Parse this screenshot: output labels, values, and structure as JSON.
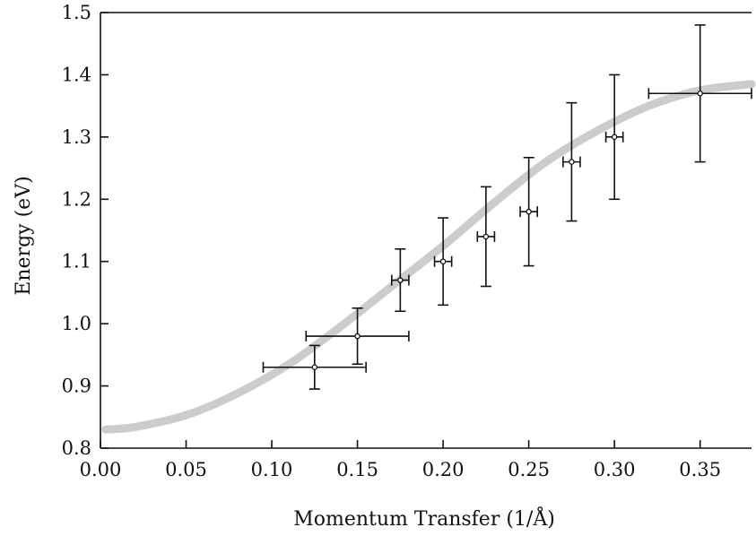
{
  "chart_data": {
    "type": "scatter",
    "title": "",
    "xlabel": "Momentum Transfer (1/Å)",
    "ylabel": "Energy (eV)",
    "xlim": [
      0.0,
      0.38
    ],
    "ylim": [
      0.8,
      1.5
    ],
    "xticks": [
      0.0,
      0.05,
      0.1,
      0.15,
      0.2,
      0.25,
      0.3,
      0.35
    ],
    "xtick_labels": [
      "0.00",
      "0.05",
      "0.10",
      "0.15",
      "0.20",
      "0.25",
      "0.30",
      "0.35"
    ],
    "yticks": [
      0.8,
      0.9,
      1.0,
      1.1,
      1.2,
      1.3,
      1.4,
      1.5
    ],
    "ytick_labels": [
      "0.8",
      "0.9",
      "1.0",
      "1.1",
      "1.2",
      "1.3",
      "1.4",
      "1.5"
    ],
    "grid": false,
    "legend": "none",
    "series": [
      {
        "kind": "points-with-errorbars",
        "color": "#111111",
        "points": [
          {
            "x": 0.125,
            "y": 0.93,
            "xerr": 0.03,
            "yerr_low": 0.035,
            "yerr_high": 0.035
          },
          {
            "x": 0.15,
            "y": 0.98,
            "xerr": 0.03,
            "yerr_low": 0.045,
            "yerr_high": 0.045
          },
          {
            "x": 0.175,
            "y": 1.07,
            "xerr": 0.005,
            "yerr_low": 0.05,
            "yerr_high": 0.05
          },
          {
            "x": 0.2,
            "y": 1.1,
            "xerr": 0.005,
            "yerr_low": 0.07,
            "yerr_high": 0.07
          },
          {
            "x": 0.225,
            "y": 1.14,
            "xerr": 0.005,
            "yerr_low": 0.08,
            "yerr_high": 0.08
          },
          {
            "x": 0.25,
            "y": 1.18,
            "xerr": 0.005,
            "yerr_low": 0.087,
            "yerr_high": 0.087
          },
          {
            "x": 0.275,
            "y": 1.26,
            "xerr": 0.005,
            "yerr_low": 0.095,
            "yerr_high": 0.095
          },
          {
            "x": 0.3,
            "y": 1.3,
            "xerr": 0.005,
            "yerr_low": 0.1,
            "yerr_high": 0.1
          },
          {
            "x": 0.35,
            "y": 1.37,
            "xerr": 0.03,
            "yerr_low": 0.11,
            "yerr_high": 0.11
          }
        ]
      },
      {
        "kind": "line",
        "color": "#cccccc",
        "x": [
          0.003,
          0.02,
          0.05,
          0.08,
          0.11,
          0.14,
          0.17,
          0.2,
          0.23,
          0.26,
          0.29,
          0.32,
          0.35,
          0.38
        ],
        "y": [
          0.83,
          0.834,
          0.853,
          0.888,
          0.935,
          0.995,
          1.06,
          1.125,
          1.195,
          1.26,
          1.31,
          1.35,
          1.375,
          1.385
        ]
      }
    ]
  }
}
